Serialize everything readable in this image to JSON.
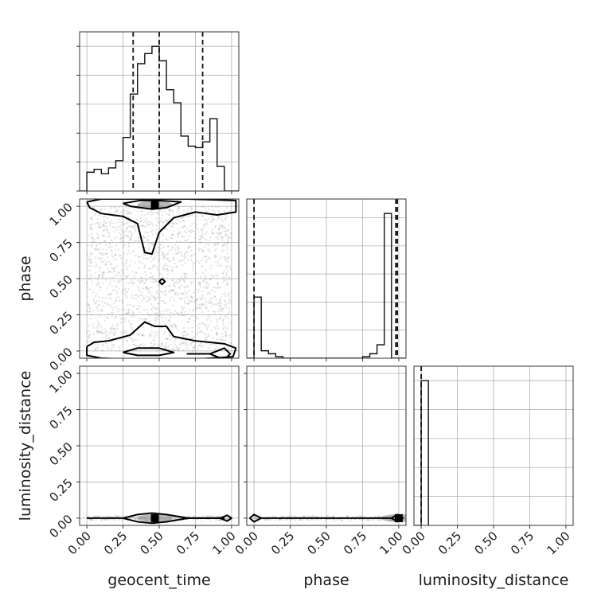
{
  "chart_data": {
    "type": "corner",
    "parameters": [
      "geocent_time",
      "phase",
      "luminosity_distance"
    ],
    "tick_values": [
      0.0,
      0.25,
      0.5,
      0.75,
      1.0
    ],
    "tick_labels": [
      "0.00",
      "0.25",
      "0.50",
      "0.75",
      "1.00"
    ],
    "grid": true,
    "panels": [
      {
        "id": "hist-geocent_time",
        "kind": "histogram",
        "x": "geocent_time",
        "xlim": [
          -0.05,
          1.05
        ],
        "bin_edges": [
          -0.05,
          0.0,
          0.05,
          0.1,
          0.15,
          0.2,
          0.25,
          0.3,
          0.35,
          0.4,
          0.45,
          0.5,
          0.55,
          0.6,
          0.65,
          0.7,
          0.75,
          0.8,
          0.85,
          0.9,
          0.95,
          1.0,
          1.05
        ],
        "counts": [
          0,
          0.13,
          0.15,
          0.12,
          0.16,
          0.21,
          0.37,
          0.67,
          0.88,
          0.95,
          1.0,
          0.9,
          0.7,
          0.61,
          0.38,
          0.31,
          0.3,
          0.34,
          0.5,
          0.17,
          0.0,
          0
        ],
        "quantile_lines": [
          0.32,
          0.5,
          0.8
        ]
      },
      {
        "id": "hist-phase",
        "kind": "histogram",
        "x": "phase",
        "xlim": [
          -0.05,
          1.05
        ],
        "bin_edges": [
          -0.05,
          0.0,
          0.05,
          0.1,
          0.15,
          0.2,
          0.25,
          0.3,
          0.35,
          0.4,
          0.45,
          0.5,
          0.55,
          0.6,
          0.65,
          0.7,
          0.75,
          0.8,
          0.85,
          0.9,
          0.95,
          1.0,
          1.05
        ],
        "counts": [
          0,
          0.41,
          0.05,
          0.03,
          0.01,
          0.0,
          0.0,
          0.0,
          0.0,
          0.0,
          0.0,
          0.0,
          0.0,
          0.0,
          0.0,
          0.0,
          0.01,
          0.03,
          0.09,
          0.97,
          0.0,
          0
        ],
        "quantile_lines": [
          0.0,
          0.98,
          0.99
        ]
      },
      {
        "id": "hist-luminosity_distance",
        "kind": "histogram",
        "x": "luminosity_distance",
        "xlim": [
          -0.05,
          1.05
        ],
        "bin_edges": [
          -0.05,
          0.0,
          0.05
        ],
        "counts": [
          0,
          1.0,
          0
        ],
        "quantile_lines": [
          0.0
        ]
      },
      {
        "id": "density-geocent_time-phase",
        "kind": "density",
        "x": "geocent_time",
        "y": "phase",
        "xlim": [
          -0.05,
          1.05
        ],
        "ylim": [
          -0.05,
          1.05
        ],
        "contours": [
          [
            [
              0.0,
              1.03
            ],
            [
              0.1,
              1.05
            ],
            [
              0.4,
              1.05
            ],
            [
              0.7,
              1.05
            ],
            [
              1.03,
              1.04
            ],
            [
              1.03,
              0.96
            ],
            [
              0.9,
              0.94
            ],
            [
              0.75,
              0.96
            ],
            [
              0.6,
              0.92
            ],
            [
              0.5,
              0.82
            ],
            [
              0.45,
              0.67
            ],
            [
              0.4,
              0.68
            ],
            [
              0.35,
              0.88
            ],
            [
              0.25,
              0.93
            ],
            [
              0.1,
              0.95
            ],
            [
              0.02,
              0.99
            ],
            [
              0.0,
              1.03
            ]
          ],
          [
            [
              0.25,
              1.02
            ],
            [
              0.37,
              1.04
            ],
            [
              0.5,
              1.04
            ],
            [
              0.65,
              1.03
            ],
            [
              0.55,
              0.99
            ],
            [
              0.45,
              0.98
            ],
            [
              0.3,
              1.0
            ],
            [
              0.25,
              1.02
            ]
          ],
          [
            [
              0.0,
              0.03
            ],
            [
              0.05,
              0.06
            ],
            [
              0.15,
              0.07
            ],
            [
              0.3,
              0.11
            ],
            [
              0.4,
              0.2
            ],
            [
              0.47,
              0.17
            ],
            [
              0.55,
              0.17
            ],
            [
              0.6,
              0.1
            ],
            [
              0.75,
              0.07
            ],
            [
              0.95,
              0.05
            ],
            [
              1.03,
              0.02
            ],
            [
              1.01,
              -0.04
            ],
            [
              0.7,
              -0.06
            ],
            [
              0.4,
              -0.06
            ],
            [
              0.1,
              -0.05
            ],
            [
              0.0,
              -0.03
            ],
            [
              0.0,
              0.03
            ]
          ],
          [
            [
              0.25,
              -0.01
            ],
            [
              0.35,
              0.02
            ],
            [
              0.5,
              0.02
            ],
            [
              0.6,
              -0.01
            ],
            [
              0.5,
              -0.03
            ],
            [
              0.35,
              -0.03
            ],
            [
              0.25,
              -0.01
            ]
          ],
          [
            [
              0.69,
              -0.02
            ],
            [
              0.85,
              -0.02
            ],
            [
              0.95,
              0.02
            ],
            [
              0.99,
              -0.02
            ],
            [
              0.95,
              -0.06
            ],
            [
              0.85,
              -0.02
            ]
          ],
          [
            [
              0.52,
              0.5
            ],
            [
              0.54,
              0.48
            ],
            [
              0.52,
              0.46
            ],
            [
              0.5,
              0.48
            ],
            [
              0.52,
              0.5
            ]
          ]
        ],
        "peak": [
          0.47,
          1.01
        ]
      },
      {
        "id": "density-geocent_time-luminosity_distance",
        "kind": "density",
        "x": "geocent_time",
        "y": "luminosity_distance",
        "xlim": [
          -0.05,
          1.05
        ],
        "ylim": [
          -0.05,
          1.05
        ],
        "contours": [
          [
            [
              0.0,
              0.0
            ],
            [
              0.25,
              0.0
            ],
            [
              0.35,
              0.025
            ],
            [
              0.45,
              0.035
            ],
            [
              0.55,
              0.025
            ],
            [
              0.7,
              0.0
            ],
            [
              0.85,
              0.0
            ],
            [
              0.95,
              0.0
            ]
          ],
          [
            [
              0.95,
              0.0
            ],
            [
              0.85,
              0.0
            ],
            [
              0.7,
              0.0
            ],
            [
              0.55,
              -0.025
            ],
            [
              0.45,
              -0.035
            ],
            [
              0.35,
              -0.025
            ],
            [
              0.25,
              0.0
            ]
          ],
          [
            [
              0.92,
              0.0
            ],
            [
              0.97,
              0.02
            ],
            [
              1.0,
              0.0
            ],
            [
              0.97,
              -0.02
            ],
            [
              0.92,
              0.0
            ]
          ]
        ],
        "peak": [
          0.47,
          0.0
        ]
      },
      {
        "id": "density-phase-luminosity_distance",
        "kind": "density",
        "x": "phase",
        "y": "luminosity_distance",
        "xlim": [
          -0.05,
          1.05
        ],
        "ylim": [
          -0.05,
          1.05
        ],
        "contours": [
          [
            [
              -0.03,
              0.0
            ],
            [
              0.0,
              0.025
            ],
            [
              0.05,
              0.0
            ],
            [
              0.95,
              0.0
            ],
            [
              0.99,
              0.025
            ],
            [
              1.03,
              0.0
            ],
            [
              0.99,
              -0.025
            ],
            [
              0.95,
              0.0
            ],
            [
              0.05,
              0.0
            ],
            [
              0.0,
              -0.025
            ],
            [
              -0.03,
              0.0
            ]
          ]
        ],
        "peak": [
          1.0,
          0.0
        ]
      }
    ]
  }
}
